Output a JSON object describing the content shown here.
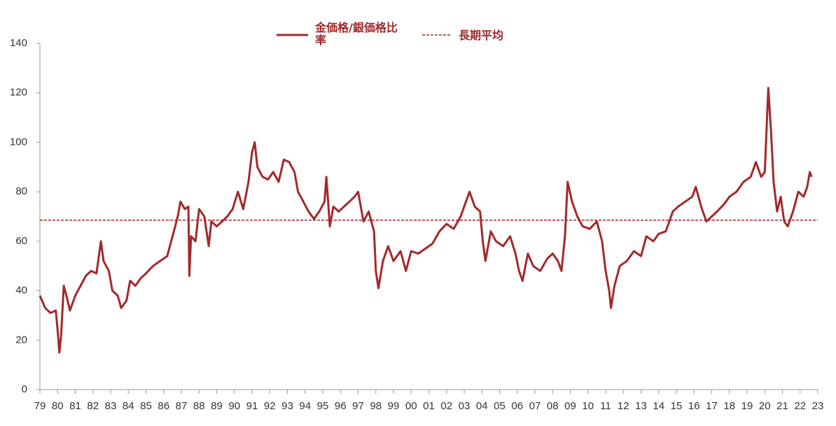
{
  "chart_data": {
    "type": "line",
    "legend": "top",
    "x": [
      1979.0,
      1979.3,
      1979.6,
      1979.9,
      1980.0,
      1980.1,
      1980.2,
      1980.35,
      1980.5,
      1980.7,
      1981.0,
      1981.3,
      1981.6,
      1981.9,
      1982.2,
      1982.45,
      1982.6,
      1982.9,
      1983.1,
      1983.4,
      1983.6,
      1983.9,
      1984.1,
      1984.4,
      1984.7,
      1985.0,
      1985.4,
      1985.8,
      1986.2,
      1986.5,
      1986.8,
      1986.95,
      1987.2,
      1987.4,
      1987.45,
      1987.55,
      1987.8,
      1988.0,
      1988.3,
      1988.55,
      1988.7,
      1989.0,
      1989.3,
      1989.6,
      1989.9,
      1990.2,
      1990.5,
      1990.8,
      1991.0,
      1991.15,
      1991.3,
      1991.6,
      1991.9,
      1992.2,
      1992.5,
      1992.8,
      1993.1,
      1993.4,
      1993.6,
      1993.9,
      1994.2,
      1994.5,
      1994.8,
      1995.1,
      1995.2,
      1995.4,
      1995.6,
      1995.9,
      1996.2,
      1996.5,
      1996.8,
      1997.0,
      1997.3,
      1997.6,
      1997.9,
      1998.0,
      1998.15,
      1998.4,
      1998.7,
      1999.0,
      1999.4,
      1999.7,
      2000.0,
      2000.4,
      2000.8,
      2001.2,
      2001.6,
      2002.0,
      2002.4,
      2002.8,
      2003.1,
      2003.3,
      2003.6,
      2003.9,
      2004.05,
      2004.2,
      2004.5,
      2004.8,
      2005.2,
      2005.6,
      2005.9,
      2006.1,
      2006.3,
      2006.6,
      2006.9,
      2007.3,
      2007.7,
      2008.0,
      2008.3,
      2008.5,
      2008.7,
      2008.85,
      2009.1,
      2009.4,
      2009.7,
      2010.1,
      2010.5,
      2010.8,
      2011.0,
      2011.2,
      2011.3,
      2011.5,
      2011.8,
      2012.2,
      2012.6,
      2013.0,
      2013.3,
      2013.7,
      2014.0,
      2014.4,
      2014.8,
      2015.1,
      2015.5,
      2015.9,
      2016.1,
      2016.4,
      2016.7,
      2017.0,
      2017.3,
      2017.7,
      2018.0,
      2018.4,
      2018.8,
      2019.2,
      2019.5,
      2019.8,
      2020.0,
      2020.2,
      2020.35,
      2020.5,
      2020.7,
      2020.9,
      2021.1,
      2021.3,
      2021.6,
      2021.9,
      2022.2,
      2022.4,
      2022.55,
      2022.65
    ],
    "series": [
      {
        "name": "金価格/銀価格比率",
        "color": "#a3282b",
        "values": [
          38,
          33,
          31,
          32,
          24,
          15,
          22,
          42,
          38,
          32,
          38,
          42,
          46,
          48,
          47,
          60,
          52,
          48,
          40,
          38,
          33,
          36,
          44,
          42,
          45,
          47,
          50,
          52,
          54,
          62,
          70,
          76,
          73,
          74,
          46,
          62,
          60,
          73,
          70,
          58,
          68,
          66,
          68,
          70,
          73,
          80,
          73,
          84,
          96,
          100,
          90,
          86,
          85,
          88,
          84,
          93,
          92,
          88,
          80,
          76,
          72,
          69,
          72,
          76,
          86,
          66,
          74,
          72,
          74,
          76,
          78,
          80,
          68,
          72,
          64,
          48,
          41,
          52,
          58,
          52,
          56,
          48,
          56,
          55,
          57,
          59,
          64,
          67,
          65,
          70,
          76,
          80,
          74,
          72,
          60,
          52,
          64,
          60,
          58,
          62,
          55,
          48,
          44,
          55,
          50,
          48,
          53,
          55,
          52,
          48,
          62,
          84,
          76,
          70,
          66,
          65,
          68,
          60,
          48,
          40,
          33,
          42,
          50,
          52,
          56,
          54,
          62,
          60,
          63,
          64,
          72,
          74,
          76,
          78,
          82,
          74,
          68,
          70,
          72,
          75,
          78,
          80,
          84,
          86,
          92,
          86,
          88,
          122,
          105,
          84,
          72,
          78,
          68,
          66,
          72,
          80,
          78,
          82,
          88,
          86
        ]
      }
    ],
    "reference_lines": [
      {
        "name": "長期平均",
        "value": 68.5,
        "color": "#a3282b",
        "style": "dashed"
      }
    ],
    "xlim": [
      1979,
      2023
    ],
    "xticks": [
      {
        "value": 1979,
        "label": "79"
      },
      {
        "value": 1980,
        "label": "80"
      },
      {
        "value": 1981,
        "label": "81"
      },
      {
        "value": 1982,
        "label": "82"
      },
      {
        "value": 1983,
        "label": "83"
      },
      {
        "value": 1984,
        "label": "84"
      },
      {
        "value": 1985,
        "label": "85"
      },
      {
        "value": 1986,
        "label": "86"
      },
      {
        "value": 1987,
        "label": "87"
      },
      {
        "value": 1988,
        "label": "88"
      },
      {
        "value": 1989,
        "label": "89"
      },
      {
        "value": 1990,
        "label": "90"
      },
      {
        "value": 1991,
        "label": "91"
      },
      {
        "value": 1992,
        "label": "92"
      },
      {
        "value": 1993,
        "label": "93"
      },
      {
        "value": 1994,
        "label": "94"
      },
      {
        "value": 1995,
        "label": "95"
      },
      {
        "value": 1996,
        "label": "96"
      },
      {
        "value": 1997,
        "label": "97"
      },
      {
        "value": 1998,
        "label": "98"
      },
      {
        "value": 1999,
        "label": "99"
      },
      {
        "value": 2000,
        "label": "00"
      },
      {
        "value": 2001,
        "label": "01"
      },
      {
        "value": 2002,
        "label": "02"
      },
      {
        "value": 2003,
        "label": "03"
      },
      {
        "value": 2004,
        "label": "04"
      },
      {
        "value": 2005,
        "label": "05"
      },
      {
        "value": 2006,
        "label": "06"
      },
      {
        "value": 2007,
        "label": "07"
      },
      {
        "value": 2008,
        "label": "08"
      },
      {
        "value": 2009,
        "label": "09"
      },
      {
        "value": 2010,
        "label": "10"
      },
      {
        "value": 2011,
        "label": "11"
      },
      {
        "value": 2012,
        "label": "12"
      },
      {
        "value": 2013,
        "label": "13"
      },
      {
        "value": 2014,
        "label": "14"
      },
      {
        "value": 2015,
        "label": "15"
      },
      {
        "value": 2016,
        "label": "16"
      },
      {
        "value": 2017,
        "label": "17"
      },
      {
        "value": 2018,
        "label": "18"
      },
      {
        "value": 2019,
        "label": "19"
      },
      {
        "value": 2020,
        "label": "20"
      },
      {
        "value": 2021,
        "label": "21"
      },
      {
        "value": 2022,
        "label": "22"
      },
      {
        "value": 2023,
        "label": "23"
      }
    ],
    "ylim": [
      0,
      140
    ],
    "yticks": [
      0,
      20,
      40,
      60,
      80,
      100,
      120,
      140
    ],
    "grid": false
  }
}
